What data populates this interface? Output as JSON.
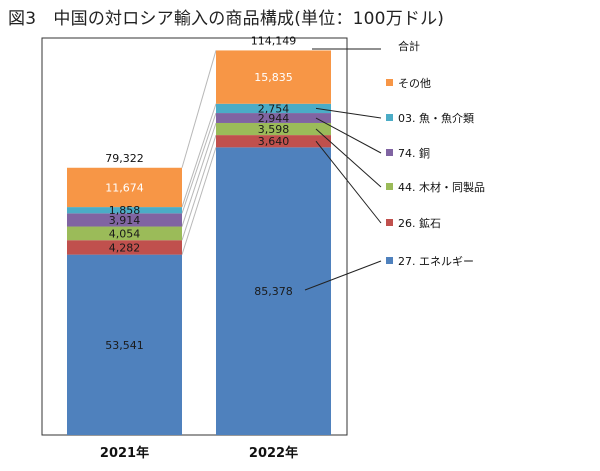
{
  "title": "図3　中国の対ロシア輸入の商品構成(単位：100万ドル)",
  "chart_data": {
    "type": "bar",
    "stacked": true,
    "title": "図3　中国の対ロシア輸入の商品構成(単位：100万ドル)",
    "categories": [
      "2021年",
      "2022年"
    ],
    "series": [
      {
        "name": "27. エネルギー",
        "values": [
          53541,
          85378
        ],
        "color": "#4f81bd",
        "label_color": "#1a1a1a"
      },
      {
        "name": "26. 鉱石",
        "values": [
          4282,
          3640
        ],
        "color": "#c0504d",
        "label_color": "#1a1a1a"
      },
      {
        "name": "44. 木材・同製品",
        "values": [
          4054,
          3598
        ],
        "color": "#9bbb59",
        "label_color": "#1a1a1a"
      },
      {
        "name": "74. 銅",
        "values": [
          3914,
          2944
        ],
        "color": "#8064a2",
        "label_color": "#1a1a1a"
      },
      {
        "name": "03. 魚・魚介類",
        "values": [
          1858,
          2754
        ],
        "color": "#4bacc6",
        "label_color": "#1a1a1a"
      },
      {
        "name": "その他",
        "values": [
          11674,
          15835
        ],
        "color": "#f79646",
        "label_color": "#ffffff"
      }
    ],
    "totals": {
      "name": "合計",
      "values": [
        79322,
        114149
      ],
      "labels": [
        "79,322",
        "114,149"
      ]
    },
    "legend": "right, with leader lines",
    "grid": false
  }
}
